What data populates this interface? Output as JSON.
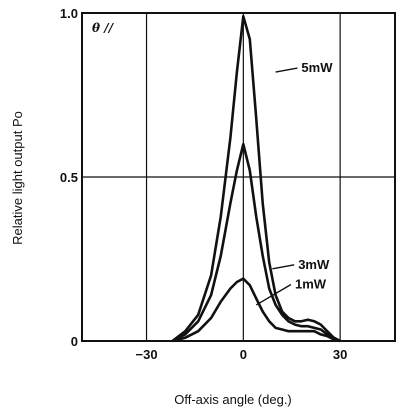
{
  "chart_data": {
    "type": "line",
    "title": "",
    "annotation": "θ //",
    "xlabel": "Off-axis angle (deg.)",
    "ylabel": "Relative light output Po",
    "xlim": [
      -50,
      47
    ],
    "ylim": [
      0,
      1.0
    ],
    "x_ticks": [
      -30,
      0,
      30
    ],
    "x_tick_labels": [
      "−30",
      "0",
      "30"
    ],
    "y_ticks": [
      0,
      0.5,
      1.0
    ],
    "y_tick_labels": [
      "0",
      "0.5",
      "1.0"
    ],
    "grid": true,
    "series": [
      {
        "name": "5mW",
        "x": [
          -22,
          -18,
          -14,
          -10,
          -7,
          -4,
          -2,
          0,
          2,
          4,
          6,
          8,
          10,
          12,
          14,
          16,
          18,
          20,
          22,
          24,
          26,
          28,
          30
        ],
        "y": [
          0.0,
          0.03,
          0.08,
          0.2,
          0.38,
          0.62,
          0.82,
          0.99,
          0.92,
          0.68,
          0.42,
          0.24,
          0.14,
          0.09,
          0.07,
          0.06,
          0.06,
          0.065,
          0.06,
          0.05,
          0.03,
          0.01,
          0.0
        ]
      },
      {
        "name": "3mW",
        "x": [
          -22,
          -18,
          -14,
          -10,
          -7,
          -4,
          -2,
          0,
          2,
          4,
          6,
          8,
          10,
          12,
          14,
          16,
          18,
          20,
          22,
          24,
          26,
          28,
          30
        ],
        "y": [
          0.0,
          0.02,
          0.06,
          0.14,
          0.26,
          0.42,
          0.52,
          0.6,
          0.52,
          0.38,
          0.26,
          0.16,
          0.11,
          0.08,
          0.06,
          0.05,
          0.045,
          0.045,
          0.04,
          0.035,
          0.02,
          0.01,
          0.0
        ]
      },
      {
        "name": "1mW",
        "x": [
          -22,
          -18,
          -14,
          -10,
          -7,
          -4,
          -2,
          0,
          2,
          4,
          6,
          8,
          10,
          12,
          14,
          16,
          18,
          20,
          22,
          24,
          26,
          28,
          30
        ],
        "y": [
          0.0,
          0.01,
          0.03,
          0.07,
          0.12,
          0.16,
          0.18,
          0.19,
          0.17,
          0.13,
          0.09,
          0.06,
          0.04,
          0.035,
          0.03,
          0.03,
          0.03,
          0.03,
          0.03,
          0.02,
          0.015,
          0.005,
          0.0
        ]
      }
    ],
    "line_color": "#111111"
  }
}
